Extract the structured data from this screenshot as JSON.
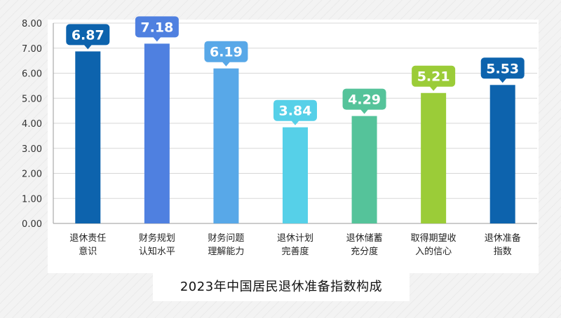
{
  "chart_data": {
    "type": "bar",
    "categories": [
      [
        "退休责任",
        "意识"
      ],
      [
        "财务规划",
        "认知水平"
      ],
      [
        "财务问题",
        "理解能力"
      ],
      [
        "退休计划",
        "完善度"
      ],
      [
        "退休储蓄",
        "充分度"
      ],
      [
        "取得期望收",
        "入的信心"
      ],
      [
        "退休准备",
        "指数"
      ]
    ],
    "values": [
      6.87,
      7.18,
      6.19,
      3.84,
      4.29,
      5.21,
      5.53
    ],
    "value_labels": [
      "6.87",
      "7.18",
      "6.19",
      "3.84",
      "4.29",
      "5.21",
      "5.53"
    ],
    "colors": [
      "#0d63ad",
      "#4f80e0",
      "#58a8e8",
      "#56d0e8",
      "#55c39a",
      "#9bcc38",
      "#0d63ad"
    ],
    "ylim": [
      0,
      8
    ],
    "yticks": [
      "0.00",
      "1.00",
      "2.00",
      "3.00",
      "4.00",
      "5.00",
      "6.00",
      "7.00",
      "8.00"
    ],
    "grid": true,
    "title": "2023年中国居民退休准备指数构成"
  }
}
